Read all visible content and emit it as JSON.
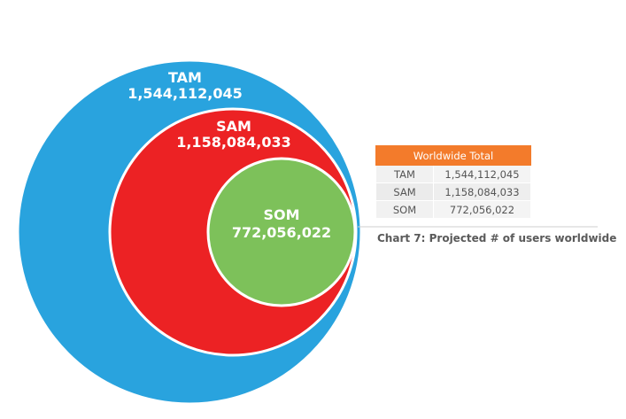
{
  "colors": {
    "tam": "#29a3de",
    "sam": "#ec2224",
    "som": "#7dc15a",
    "header": "#f37b2b"
  },
  "circles": {
    "tam": {
      "name": "TAM",
      "value": "1,544,112,045"
    },
    "sam": {
      "name": "SAM",
      "value": "1,158,084,033"
    },
    "som": {
      "name": "SOM",
      "value": "772,056,022"
    }
  },
  "table": {
    "header": "Worldwide Total",
    "rows": [
      {
        "name": "TAM",
        "value": "1,544,112,045"
      },
      {
        "name": "SAM",
        "value": "1,158,084,033"
      },
      {
        "name": "SOM",
        "value": "772,056,022"
      }
    ]
  },
  "caption": "Chart 7: Projected # of users worldwide"
}
